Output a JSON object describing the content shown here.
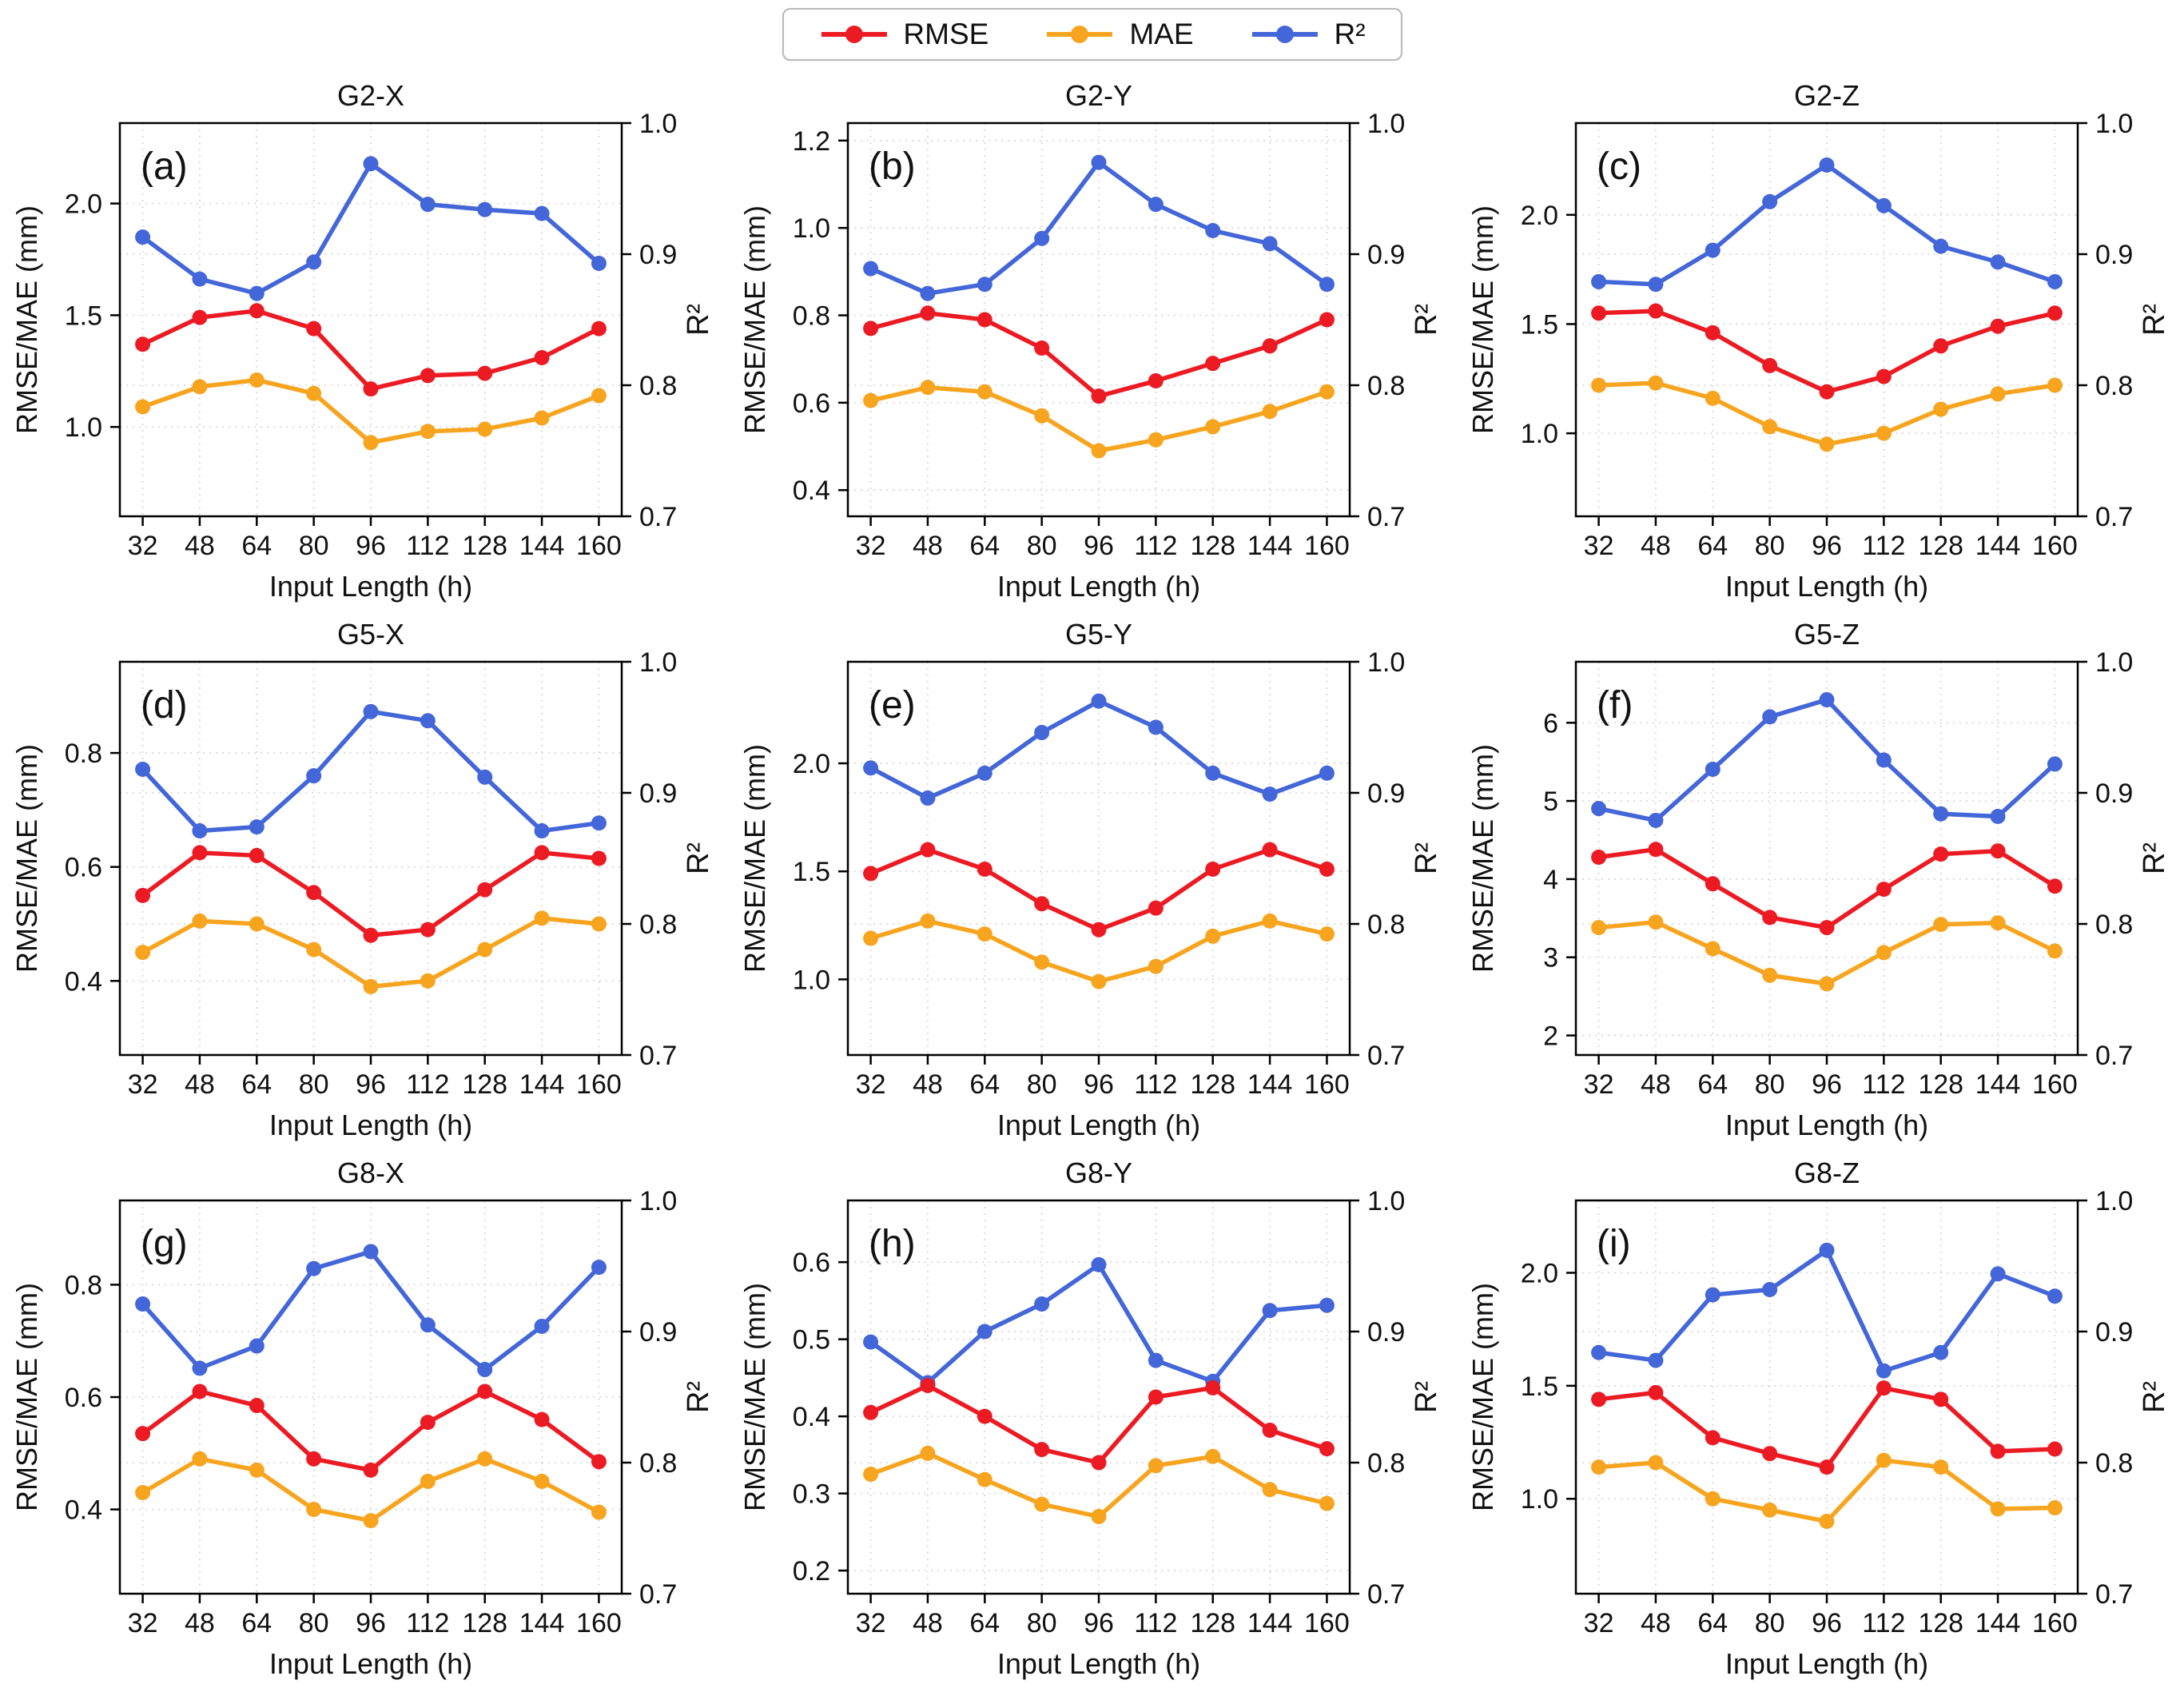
{
  "figure": {
    "legend": {
      "items": [
        {
          "name": "RMSE",
          "color": "#ec1b23"
        },
        {
          "name": "MAE",
          "color": "#f7a41f"
        },
        {
          "name": "R²",
          "color": "#4366d8"
        }
      ]
    }
  },
  "axes_shared": {
    "xlabel": "Input Length (h)",
    "ylabel_left": "RMSE/MAE (mm)",
    "ylabel_right": "R²",
    "x_tick_labels": [
      "32",
      "48",
      "64",
      "80",
      "96",
      "112",
      "128",
      "144",
      "160"
    ],
    "x_values": [
      32,
      48,
      64,
      80,
      96,
      112,
      128,
      144,
      160
    ],
    "ylim_right": [
      0.7,
      1.0
    ],
    "yticks_right": [
      "0.7",
      "0.8",
      "0.9",
      "1.0"
    ],
    "grid": "dotted",
    "legend_position": "top-center"
  },
  "chart_data": [
    {
      "type": "line",
      "panel": "(a)",
      "title": "G2-X",
      "ylim_left": [
        0.6,
        2.36
      ],
      "yticks_left": [
        "1.0",
        "1.5",
        "2.0"
      ],
      "series": [
        {
          "name": "RMSE",
          "axis": "left",
          "values": [
            1.37,
            1.49,
            1.52,
            1.44,
            1.17,
            1.23,
            1.24,
            1.31,
            1.44
          ]
        },
        {
          "name": "MAE",
          "axis": "left",
          "values": [
            1.09,
            1.18,
            1.21,
            1.15,
            0.93,
            0.98,
            0.99,
            1.04,
            1.14
          ]
        },
        {
          "name": "R²",
          "axis": "right",
          "values": [
            0.913,
            0.881,
            0.87,
            0.894,
            0.969,
            0.938,
            0.934,
            0.931,
            0.893
          ]
        }
      ]
    },
    {
      "type": "line",
      "panel": "(b)",
      "title": "G2-Y",
      "ylim_left": [
        0.34,
        1.24
      ],
      "yticks_left": [
        "0.4",
        "0.6",
        "0.8",
        "1.0",
        "1.2"
      ],
      "series": [
        {
          "name": "RMSE",
          "axis": "left",
          "values": [
            0.77,
            0.805,
            0.79,
            0.725,
            0.615,
            0.65,
            0.69,
            0.73,
            0.79
          ]
        },
        {
          "name": "MAE",
          "axis": "left",
          "values": [
            0.605,
            0.635,
            0.625,
            0.57,
            0.49,
            0.515,
            0.545,
            0.58,
            0.625
          ]
        },
        {
          "name": "R²",
          "axis": "right",
          "values": [
            0.889,
            0.87,
            0.877,
            0.912,
            0.97,
            0.938,
            0.918,
            0.908,
            0.877
          ]
        }
      ]
    },
    {
      "type": "line",
      "panel": "(c)",
      "title": "G2-Z",
      "ylim_left": [
        0.62,
        2.42
      ],
      "yticks_left": [
        "1.0",
        "1.5",
        "2.0"
      ],
      "series": [
        {
          "name": "RMSE",
          "axis": "left",
          "values": [
            1.55,
            1.56,
            1.46,
            1.31,
            1.19,
            1.26,
            1.4,
            1.49,
            1.55
          ]
        },
        {
          "name": "MAE",
          "axis": "left",
          "values": [
            1.22,
            1.23,
            1.16,
            1.03,
            0.95,
            1.0,
            1.11,
            1.18,
            1.22
          ]
        },
        {
          "name": "R²",
          "axis": "right",
          "values": [
            0.879,
            0.877,
            0.903,
            0.94,
            0.968,
            0.937,
            0.906,
            0.894,
            0.879
          ]
        }
      ]
    },
    {
      "type": "line",
      "panel": "(d)",
      "title": "G5-X",
      "ylim_left": [
        0.27,
        0.96
      ],
      "yticks_left": [
        "0.4",
        "0.6",
        "0.8"
      ],
      "series": [
        {
          "name": "RMSE",
          "axis": "left",
          "values": [
            0.55,
            0.625,
            0.62,
            0.555,
            0.48,
            0.49,
            0.56,
            0.625,
            0.615
          ]
        },
        {
          "name": "MAE",
          "axis": "left",
          "values": [
            0.45,
            0.505,
            0.5,
            0.455,
            0.39,
            0.4,
            0.455,
            0.51,
            0.5
          ]
        },
        {
          "name": "R²",
          "axis": "right",
          "values": [
            0.918,
            0.871,
            0.874,
            0.913,
            0.962,
            0.955,
            0.912,
            0.871,
            0.877
          ]
        }
      ]
    },
    {
      "type": "line",
      "panel": "(e)",
      "title": "G5-Y",
      "ylim_left": [
        0.65,
        2.47
      ],
      "yticks_left": [
        "1.0",
        "1.5",
        "2.0"
      ],
      "series": [
        {
          "name": "RMSE",
          "axis": "left",
          "values": [
            1.49,
            1.6,
            1.51,
            1.35,
            1.23,
            1.33,
            1.51,
            1.6,
            1.51
          ]
        },
        {
          "name": "MAE",
          "axis": "left",
          "values": [
            1.19,
            1.27,
            1.21,
            1.08,
            0.99,
            1.06,
            1.2,
            1.27,
            1.21
          ]
        },
        {
          "name": "R²",
          "axis": "right",
          "values": [
            0.919,
            0.896,
            0.915,
            0.946,
            0.97,
            0.95,
            0.915,
            0.899,
            0.915
          ]
        }
      ]
    },
    {
      "type": "line",
      "panel": "(f)",
      "title": "G5-Z",
      "ylim_left": [
        1.75,
        6.78
      ],
      "yticks_left": [
        "2",
        "3",
        "4",
        "5",
        "6"
      ],
      "series": [
        {
          "name": "RMSE",
          "axis": "left",
          "values": [
            4.28,
            4.38,
            3.94,
            3.51,
            3.38,
            3.87,
            4.32,
            4.36,
            3.91
          ]
        },
        {
          "name": "MAE",
          "axis": "left",
          "values": [
            3.38,
            3.45,
            3.11,
            2.77,
            2.66,
            3.06,
            3.42,
            3.44,
            3.08
          ]
        },
        {
          "name": "R²",
          "axis": "right",
          "values": [
            0.888,
            0.879,
            0.918,
            0.958,
            0.971,
            0.925,
            0.884,
            0.882,
            0.922
          ]
        }
      ]
    },
    {
      "type": "line",
      "panel": "(g)",
      "title": "G8-X",
      "ylim_left": [
        0.25,
        0.95
      ],
      "yticks_left": [
        "0.4",
        "0.6",
        "0.8"
      ],
      "series": [
        {
          "name": "RMSE",
          "axis": "left",
          "values": [
            0.535,
            0.61,
            0.585,
            0.49,
            0.47,
            0.555,
            0.61,
            0.56,
            0.485
          ]
        },
        {
          "name": "MAE",
          "axis": "left",
          "values": [
            0.43,
            0.49,
            0.47,
            0.4,
            0.38,
            0.45,
            0.49,
            0.45,
            0.395
          ]
        },
        {
          "name": "R²",
          "axis": "right",
          "values": [
            0.921,
            0.872,
            0.889,
            0.948,
            0.961,
            0.905,
            0.871,
            0.904,
            0.949
          ]
        }
      ]
    },
    {
      "type": "line",
      "panel": "(h)",
      "title": "G8-Y",
      "ylim_left": [
        0.17,
        0.68
      ],
      "yticks_left": [
        "0.2",
        "0.3",
        "0.4",
        "0.5",
        "0.6"
      ],
      "series": [
        {
          "name": "RMSE",
          "axis": "left",
          "values": [
            0.405,
            0.44,
            0.4,
            0.357,
            0.34,
            0.425,
            0.437,
            0.382,
            0.358
          ]
        },
        {
          "name": "MAE",
          "axis": "left",
          "values": [
            0.325,
            0.352,
            0.318,
            0.286,
            0.27,
            0.336,
            0.348,
            0.305,
            0.287
          ]
        },
        {
          "name": "R²",
          "axis": "right",
          "values": [
            0.892,
            0.861,
            0.9,
            0.921,
            0.951,
            0.878,
            0.862,
            0.916,
            0.92
          ]
        }
      ]
    },
    {
      "type": "line",
      "panel": "(i)",
      "title": "G8-Z",
      "ylim_left": [
        0.58,
        2.32
      ],
      "yticks_left": [
        "1.0",
        "1.5",
        "2.0"
      ],
      "series": [
        {
          "name": "RMSE",
          "axis": "left",
          "values": [
            1.44,
            1.47,
            1.27,
            1.2,
            1.14,
            1.49,
            1.44,
            1.21,
            1.22
          ]
        },
        {
          "name": "MAE",
          "axis": "left",
          "values": [
            1.14,
            1.16,
            1.0,
            0.95,
            0.9,
            1.17,
            1.14,
            0.955,
            0.96
          ]
        },
        {
          "name": "R²",
          "axis": "right",
          "values": [
            0.884,
            0.878,
            0.928,
            0.932,
            0.962,
            0.87,
            0.884,
            0.944,
            0.927
          ]
        }
      ]
    }
  ]
}
